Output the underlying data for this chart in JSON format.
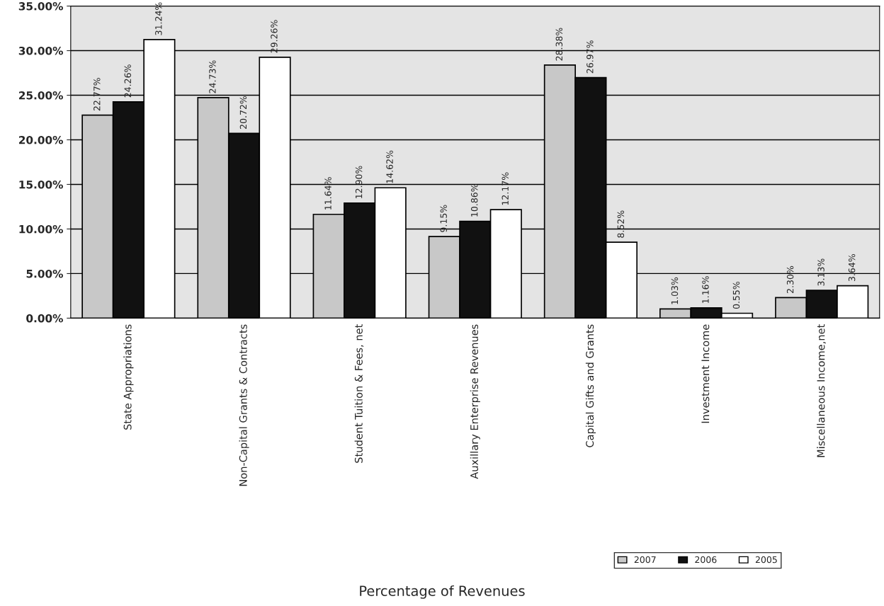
{
  "chart_data": {
    "type": "bar",
    "title": "Percentage of Revenues",
    "categories": [
      "State Appropriations",
      "Non-Capital Grants & Contracts",
      "Student Tuition & Fees, net",
      "Auxillary Enterprise Revenues",
      "Capital Gifts and Grants",
      "Investment Income",
      "Miscellaneous Income,net"
    ],
    "series": [
      {
        "name": "2007",
        "color": "#c8c8c8",
        "values": [
          22.77,
          24.73,
          11.64,
          9.15,
          28.38,
          1.03,
          2.3
        ],
        "value_labels": [
          "22.77%",
          "24.73%",
          "11.64%",
          "9.15%",
          "28.38%",
          "1.03%",
          "2.30%"
        ]
      },
      {
        "name": "2006",
        "color": "#111111",
        "values": [
          24.26,
          20.72,
          12.9,
          10.86,
          26.97,
          1.16,
          3.13
        ],
        "value_labels": [
          "24.26%",
          "20.72%",
          "12.90%",
          "10.86%",
          "26.97%",
          "1.16%",
          "3.13%"
        ]
      },
      {
        "name": "2005",
        "color": "#ffffff",
        "values": [
          31.24,
          29.26,
          14.62,
          12.17,
          8.52,
          0.55,
          3.64
        ],
        "value_labels": [
          "31.24%",
          "29.26%",
          "14.62%",
          "12.17%",
          "8.52%",
          "0.55%",
          "3.64%"
        ]
      }
    ],
    "ylim": [
      0,
      35
    ],
    "yticks": [
      {
        "value": 0,
        "label": "0.00%"
      },
      {
        "value": 5,
        "label": "5.00%"
      },
      {
        "value": 10,
        "label": "10.00%"
      },
      {
        "value": 15,
        "label": "15.00%"
      },
      {
        "value": 20,
        "label": "20.00%"
      },
      {
        "value": 25,
        "label": "25.00%"
      },
      {
        "value": 30,
        "label": "30.00%"
      },
      {
        "value": 35,
        "label": "35.00%"
      }
    ],
    "grid": "y",
    "legend": "bottom right"
  }
}
